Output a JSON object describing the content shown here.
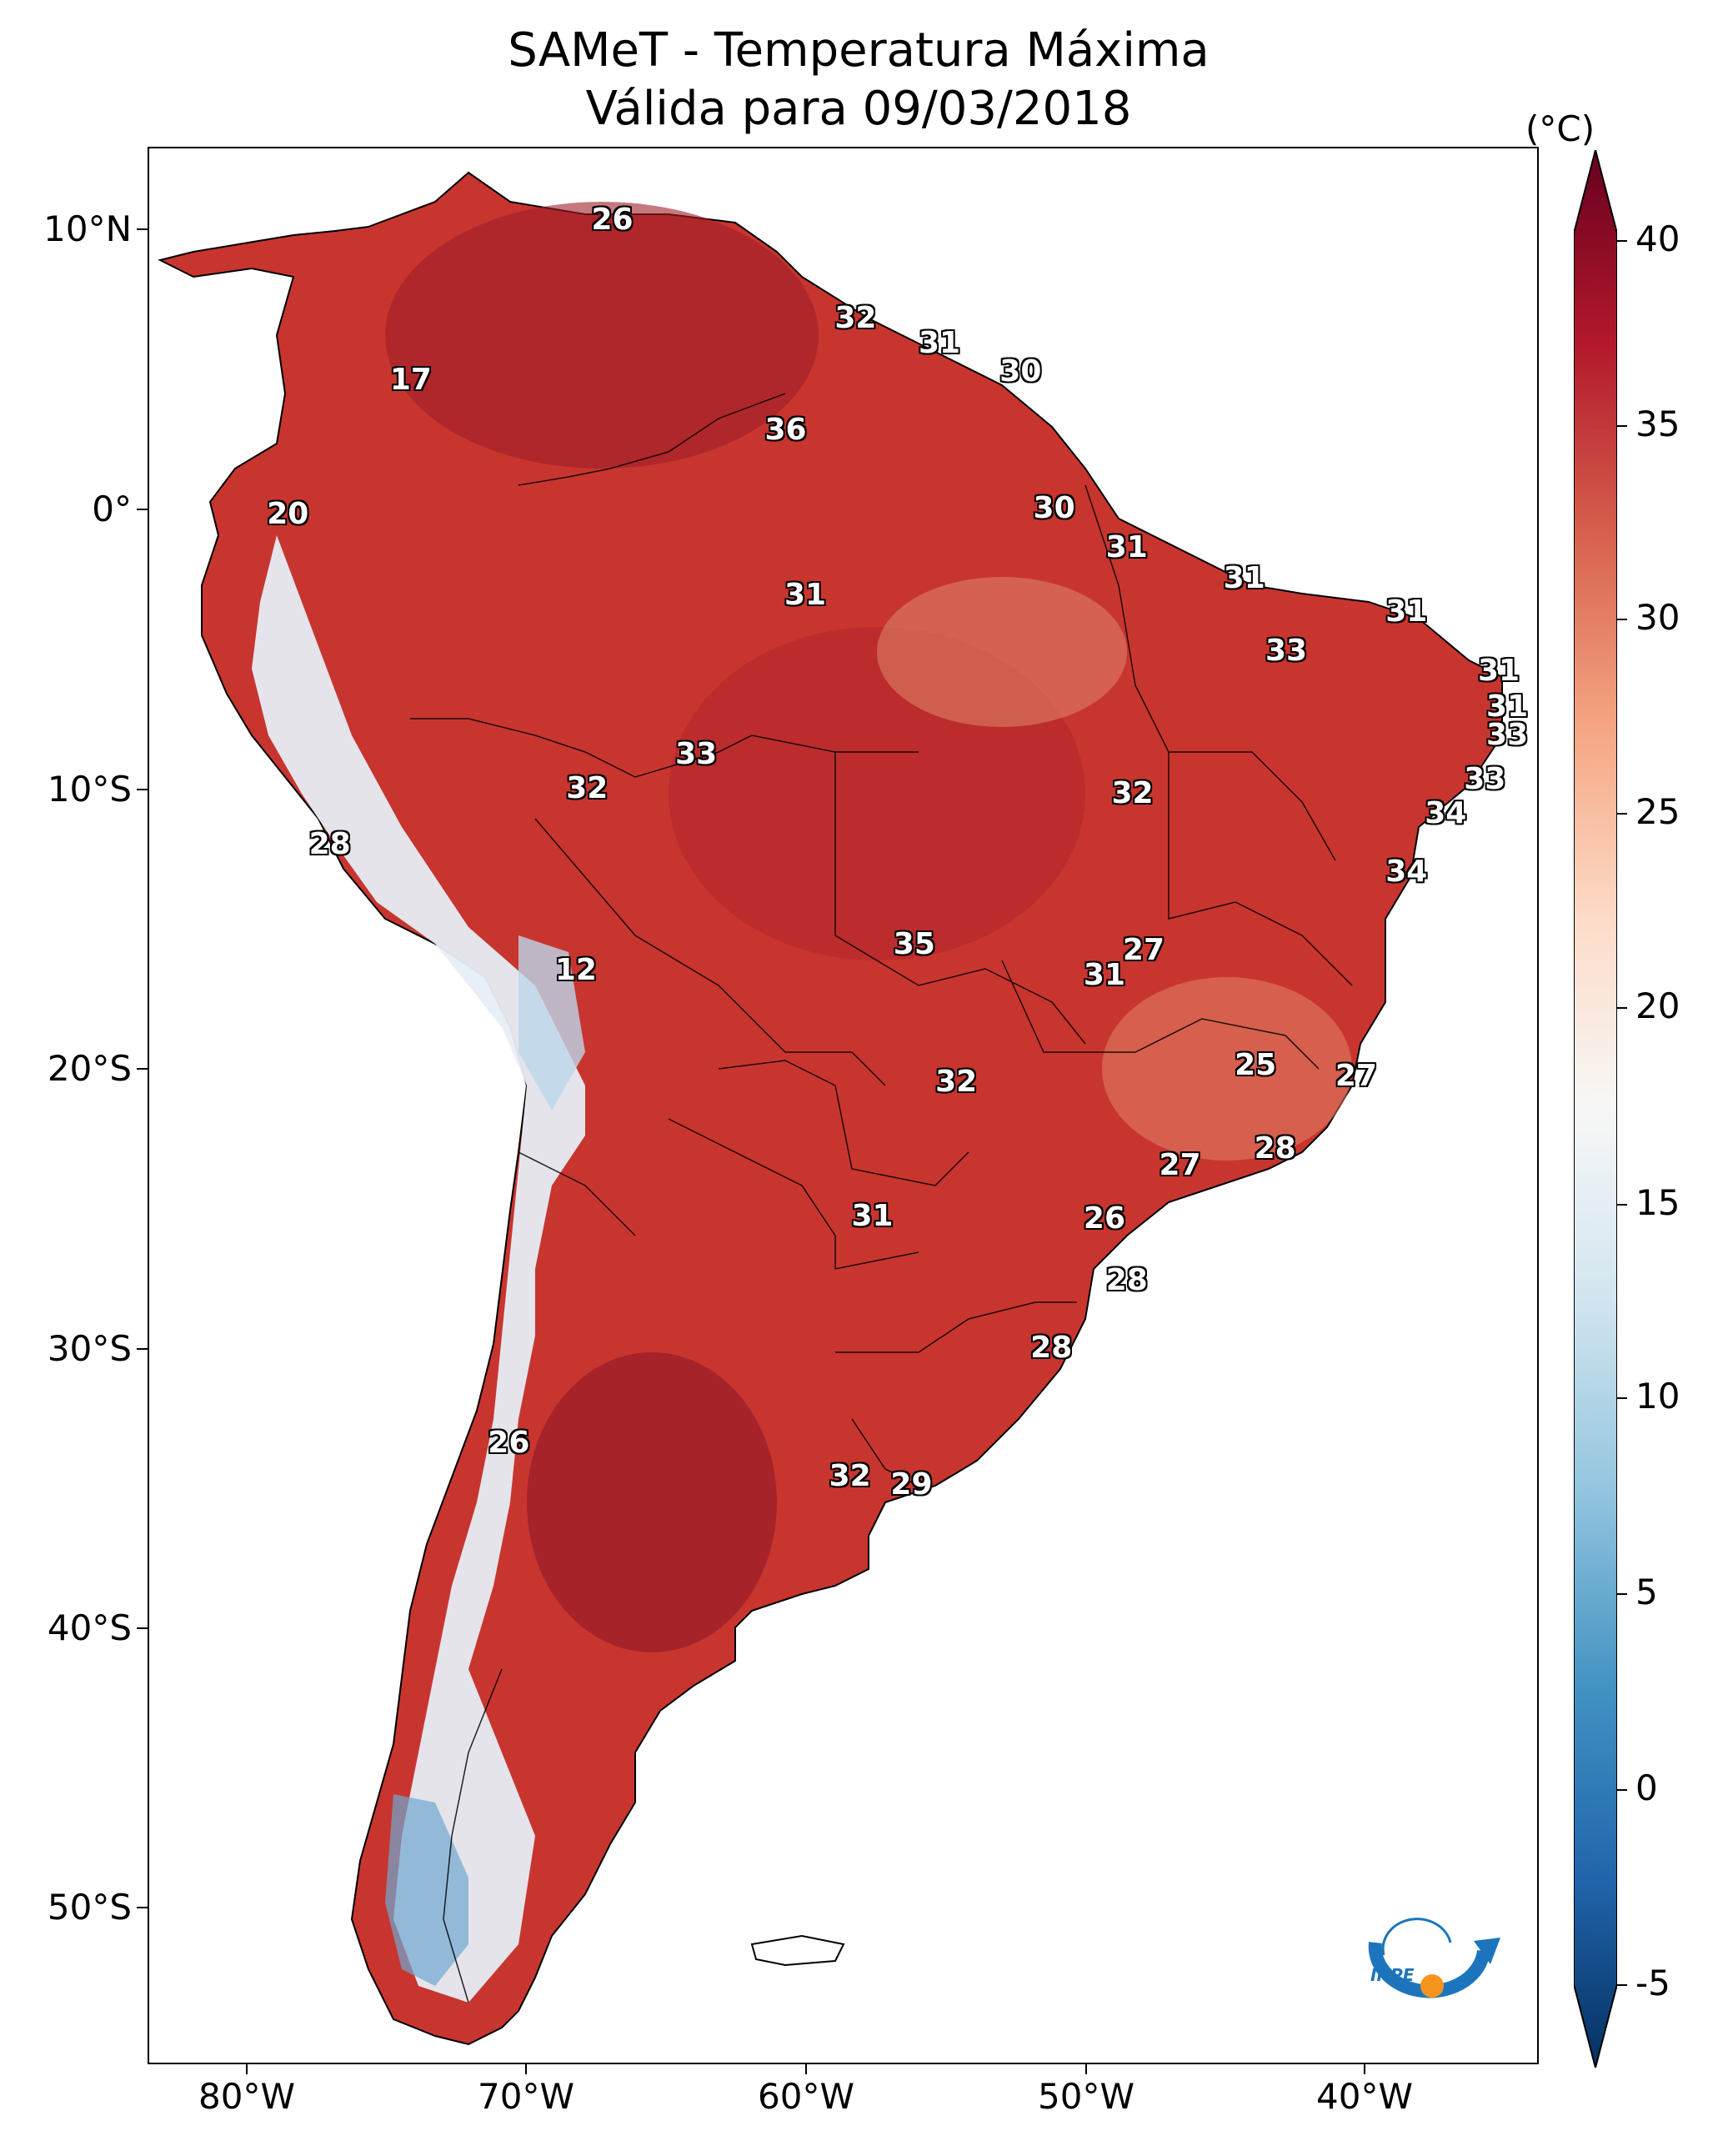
{
  "title": {
    "line1": "SAMeT - Temperatura Máxima",
    "line2": "Válida para 09/03/2018"
  },
  "axes": {
    "lat_labels": [
      "10°N",
      "0°",
      "10°S",
      "20°S",
      "30°S",
      "40°S",
      "50°S"
    ],
    "lon_labels": [
      "80°W",
      "70°W",
      "60°W",
      "50°W",
      "40°W"
    ]
  },
  "colorbar": {
    "unit": "(°C)",
    "ticks": [
      "40",
      "35",
      "30",
      "25",
      "20",
      "15",
      "10",
      "5",
      "0",
      "-5"
    ],
    "range": [
      -5,
      40
    ],
    "extend": "both",
    "colormap": [
      "#053061",
      "#2166ac",
      "#4393c3",
      "#92c5de",
      "#d1e5f0",
      "#f7f7f7",
      "#fddbc7",
      "#f4a582",
      "#d6604d",
      "#b2182b",
      "#67001f"
    ]
  },
  "temperature_labels": [
    {
      "value": "26",
      "lat": 10.3,
      "lon": -66.9
    },
    {
      "value": "32",
      "lat": 6.8,
      "lon": -58.2
    },
    {
      "value": "31",
      "lat": 5.9,
      "lon": -55.2
    },
    {
      "value": "30",
      "lat": 4.9,
      "lon": -52.3
    },
    {
      "value": "17",
      "lat": 4.6,
      "lon": -74.1
    },
    {
      "value": "36",
      "lat": 2.8,
      "lon": -60.7
    },
    {
      "value": "20",
      "lat": -0.2,
      "lon": -78.5
    },
    {
      "value": "30",
      "lat": 0.0,
      "lon": -51.1
    },
    {
      "value": "31",
      "lat": -1.4,
      "lon": -48.5
    },
    {
      "value": "31",
      "lat": -2.5,
      "lon": -44.3
    },
    {
      "value": "31",
      "lat": -3.1,
      "lon": -60.0
    },
    {
      "value": "31",
      "lat": -3.7,
      "lon": -38.5
    },
    {
      "value": "33",
      "lat": -5.1,
      "lon": -42.8
    },
    {
      "value": "31",
      "lat": -5.8,
      "lon": -35.2
    },
    {
      "value": "31",
      "lat": -7.1,
      "lon": -34.9
    },
    {
      "value": "33",
      "lat": -8.1,
      "lon": -34.9
    },
    {
      "value": "33",
      "lat": -8.8,
      "lon": -63.9
    },
    {
      "value": "32",
      "lat": -10.0,
      "lon": -67.8
    },
    {
      "value": "32",
      "lat": -10.2,
      "lon": -48.3
    },
    {
      "value": "33",
      "lat": -9.7,
      "lon": -35.7
    },
    {
      "value": "34",
      "lat": -10.9,
      "lon": -37.1
    },
    {
      "value": "28",
      "lat": -12.0,
      "lon": -77.0
    },
    {
      "value": "34",
      "lat": -13.0,
      "lon": -38.5
    },
    {
      "value": "35",
      "lat": -15.6,
      "lon": -56.1
    },
    {
      "value": "27",
      "lat": -15.8,
      "lon": -47.9
    },
    {
      "value": "12",
      "lat": -16.5,
      "lon": -68.2
    },
    {
      "value": "31",
      "lat": -16.7,
      "lon": -49.3
    },
    {
      "value": "25",
      "lat": -19.9,
      "lon": -43.9
    },
    {
      "value": "27",
      "lat": -20.3,
      "lon": -40.3
    },
    {
      "value": "32",
      "lat": -20.5,
      "lon": -54.6
    },
    {
      "value": "28",
      "lat": -22.9,
      "lon": -43.2
    },
    {
      "value": "27",
      "lat": -23.5,
      "lon": -46.6
    },
    {
      "value": "31",
      "lat": -25.3,
      "lon": -57.6
    },
    {
      "value": "26",
      "lat": -25.4,
      "lon": -49.3
    },
    {
      "value": "28",
      "lat": -27.6,
      "lon": -48.5
    },
    {
      "value": "28",
      "lat": -30.0,
      "lon": -51.2
    },
    {
      "value": "26",
      "lat": -33.4,
      "lon": -70.6
    },
    {
      "value": "32",
      "lat": -34.6,
      "lon": -58.4
    },
    {
      "value": "29",
      "lat": -34.9,
      "lon": -56.2
    }
  ],
  "logo": {
    "text": "INPE"
  }
}
